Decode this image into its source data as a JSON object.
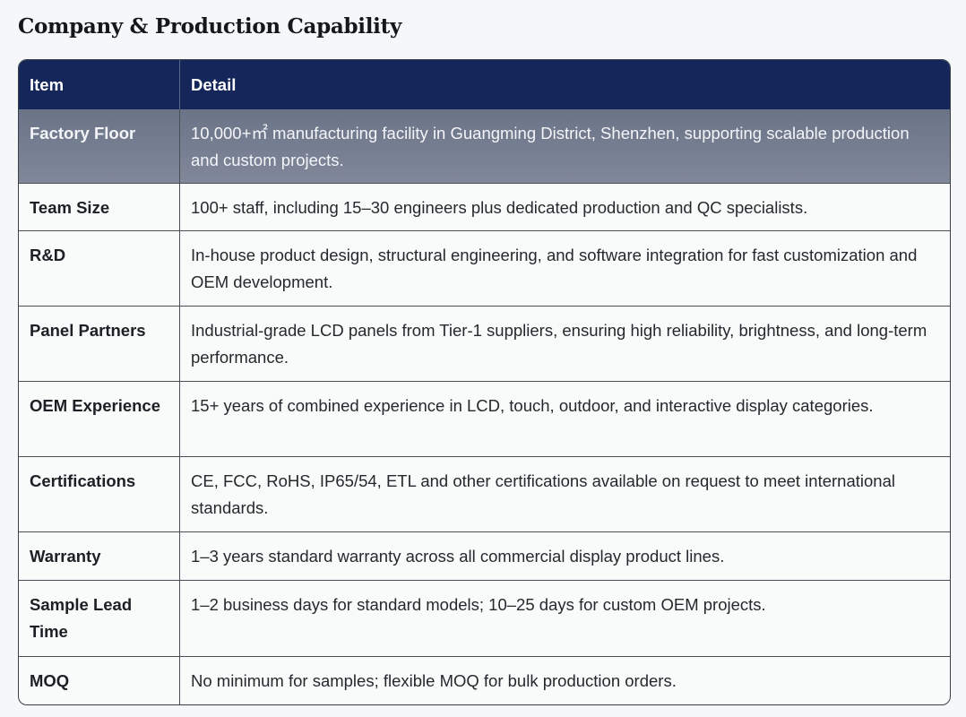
{
  "title": "Company & Production Capability",
  "headers": {
    "item": "Item",
    "detail": "Detail"
  },
  "rows": [
    {
      "item": "Factory Floor",
      "detail": "10,000+㎡ manufacturing facility in Guangming District, Shenzhen, supporting scalable production and custom projects."
    },
    {
      "item": "Team Size",
      "detail": "100+ staff, including 15–30 engineers plus dedicated production and QC specialists."
    },
    {
      "item": "R&D",
      "detail": "In-house product design, structural engineering, and software integration for fast customization and OEM development."
    },
    {
      "item": "Panel Partners",
      "detail": "Industrial-grade LCD panels from Tier-1 suppliers, ensuring high reliability, brightness, and long-term performance."
    },
    {
      "item": "OEM Experience",
      "detail": "15+ years of combined experience in LCD, touch, outdoor, and interactive display categories."
    },
    {
      "item": "Certifications",
      "detail": "CE, FCC, RoHS, IP65/54, ETL and other certifications available on request to meet international standards."
    },
    {
      "item": "Warranty",
      "detail": "1–3 years standard warranty across all commercial display product lines."
    },
    {
      "item": "Sample Lead Time",
      "detail": "1–2 business days for standard models; 10–25 days for custom OEM projects."
    },
    {
      "item": "MOQ",
      "detail": "No minimum for samples; flexible MOQ for bulk production orders."
    }
  ]
}
